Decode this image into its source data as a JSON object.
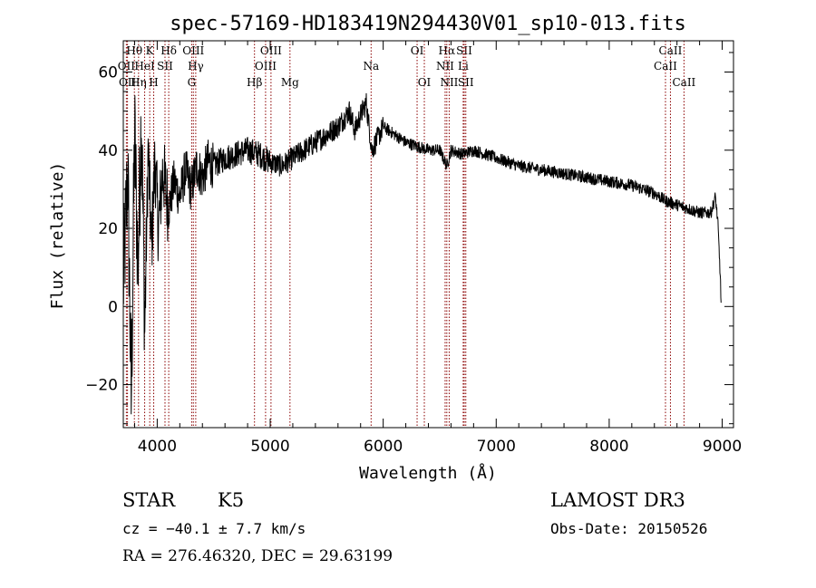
{
  "chart_data": {
    "type": "line",
    "title": "spec-57169-HD183419N294430V01_sp10-013.fits",
    "xlabel": "Wavelength (Å)",
    "ylabel": "Flux (relative)",
    "xlim": [
      3700,
      9100
    ],
    "ylim": [
      -31,
      68
    ],
    "xticks": [
      4000,
      5000,
      6000,
      7000,
      8000,
      9000
    ],
    "yticks": [
      -20,
      0,
      20,
      40,
      60
    ],
    "line_color": "#8b0000",
    "spectrum_color": "#000000",
    "spectrum": {
      "x": [
        3700,
        3740,
        3770,
        3800,
        3830,
        3860,
        3890,
        3920,
        3950,
        3980,
        4010,
        4050,
        4100,
        4150,
        4200,
        4250,
        4300,
        4350,
        4400,
        4450,
        4500,
        4600,
        4700,
        4800,
        4900,
        5000,
        5100,
        5200,
        5300,
        5400,
        5500,
        5600,
        5700,
        5750,
        5800,
        5850,
        5900,
        6000,
        6100,
        6200,
        6300,
        6400,
        6500,
        6563,
        6600,
        6700,
        6800,
        6900,
        7000,
        7200,
        7400,
        7600,
        7800,
        8000,
        8200,
        8400,
        8500,
        8600,
        8700,
        8800,
        8900,
        8940,
        8960,
        8980,
        8990
      ],
      "y": [
        5,
        35,
        -25,
        45,
        10,
        50,
        -5,
        40,
        15,
        38,
        20,
        35,
        25,
        32,
        28,
        35,
        30,
        36,
        33,
        37,
        36,
        38,
        39,
        40,
        39,
        37,
        36,
        38,
        40,
        42,
        44,
        46,
        50,
        45,
        49,
        52,
        40,
        46,
        44,
        42,
        41,
        40,
        40,
        36,
        40,
        39,
        40,
        39,
        38,
        36,
        35,
        34,
        33,
        32,
        31,
        29,
        27,
        26,
        25,
        24,
        24,
        28,
        22,
        10,
        1
      ]
    },
    "lines": [
      {
        "label": "Hθ",
        "x": 3798,
        "row": 0
      },
      {
        "label": "OII",
        "x": 3727,
        "row": 1
      },
      {
        "label": "OII",
        "x": 3737,
        "row": 2
      },
      {
        "label": "Hη",
        "x": 3835,
        "row": 2
      },
      {
        "label": "HeI",
        "x": 3889,
        "row": 1
      },
      {
        "label": "K",
        "x": 3934,
        "row": 0
      },
      {
        "label": "H",
        "x": 3969,
        "row": 2
      },
      {
        "label": "SII",
        "x": 4069,
        "row": 1
      },
      {
        "label": "Hδ",
        "x": 4102,
        "row": 0
      },
      {
        "label": "OIII",
        "x": 4320,
        "row": 0
      },
      {
        "label": "Hγ",
        "x": 4341,
        "row": 1
      },
      {
        "label": "G",
        "x": 4305,
        "row": 2
      },
      {
        "label": "Hβ",
        "x": 4861,
        "row": 2
      },
      {
        "label": "OIII",
        "x": 5007,
        "row": 0
      },
      {
        "label": "OIII",
        "x": 4959,
        "row": 1
      },
      {
        "label": "Mg",
        "x": 5175,
        "row": 2
      },
      {
        "label": "Na",
        "x": 5893,
        "row": 1
      },
      {
        "label": "OI",
        "x": 6300,
        "row": 0
      },
      {
        "label": "OI",
        "x": 6364,
        "row": 2
      },
      {
        "label": "Hα",
        "x": 6563,
        "row": 0
      },
      {
        "label": "NII",
        "x": 6548,
        "row": 1
      },
      {
        "label": "NII",
        "x": 6584,
        "row": 2
      },
      {
        "label": "SII",
        "x": 6717,
        "row": 0
      },
      {
        "label": "Li",
        "x": 6708,
        "row": 1
      },
      {
        "label": "SII",
        "x": 6731,
        "row": 2
      },
      {
        "label": "CaII",
        "x": 8542,
        "row": 0
      },
      {
        "label": "CaII",
        "x": 8498,
        "row": 1
      },
      {
        "label": "CaII",
        "x": 8662,
        "row": 2
      }
    ]
  },
  "info": {
    "class": "STAR",
    "subclass": "K5",
    "survey": "LAMOST DR3",
    "cz": "cz = −40.1 ± 7.7 km/s",
    "obsdate": "Obs-Date: 20150526",
    "radec": "RA = 276.46320, DEC =  29.63199"
  }
}
